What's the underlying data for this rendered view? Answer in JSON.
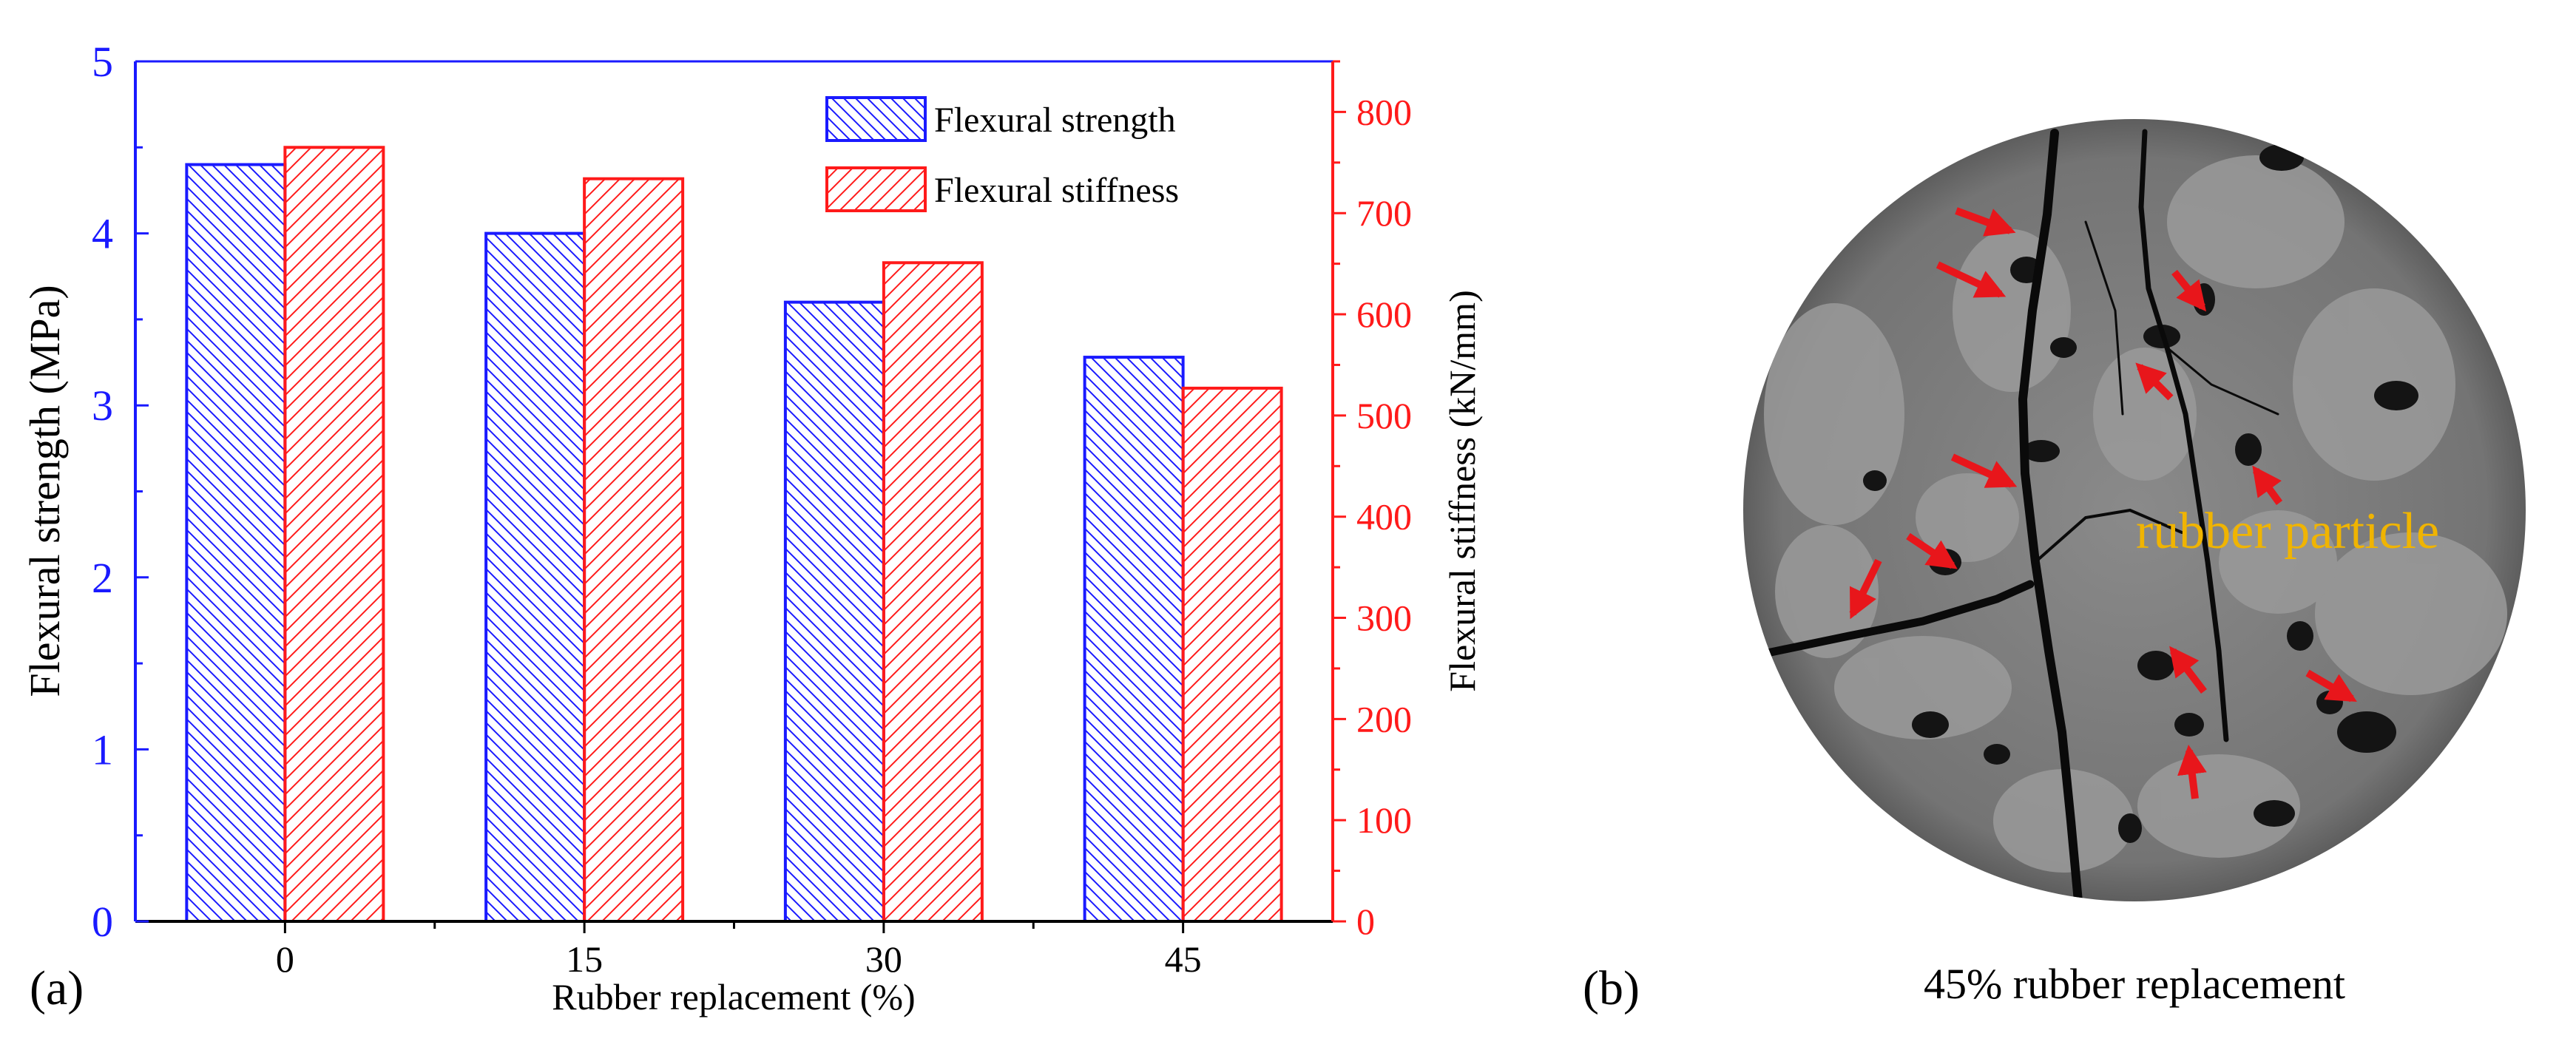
{
  "panel_a": {
    "label": "(a)"
  },
  "panel_b": {
    "label": "(b)",
    "caption": "45% rubber replacement",
    "annotation": "rubber particle",
    "colors": {
      "annotation": "#f0b400",
      "arrow": "#e8161b",
      "specimen": "#7b7b7b"
    }
  },
  "chart_data": {
    "type": "bar",
    "categories": [
      "0",
      "15",
      "30",
      "45"
    ],
    "xlabel": "Rubber replacement (%)",
    "ylabel": "Flexural strength (MPa)",
    "ylabel_right": "Flexural stiffness (kN/mm)",
    "ylim": [
      0,
      5
    ],
    "ylim_right": [
      0,
      850
    ],
    "yticks": [
      "0",
      "1",
      "2",
      "3",
      "4",
      "5"
    ],
    "yticks_right": [
      "0",
      "100",
      "200",
      "300",
      "400",
      "500",
      "600",
      "700",
      "800"
    ],
    "legend_position": "top-right",
    "grid": false,
    "series": [
      {
        "name": "Flexural strength",
        "axis": "left",
        "color": "#1a1aff",
        "hatch": "backslash",
        "values": [
          4.4,
          4.0,
          3.6,
          3.28
        ]
      },
      {
        "name": "Flexural stiffness",
        "axis": "right",
        "color": "#ff1a1a",
        "hatch": "slash",
        "values": [
          765,
          734,
          651,
          527
        ]
      }
    ]
  }
}
